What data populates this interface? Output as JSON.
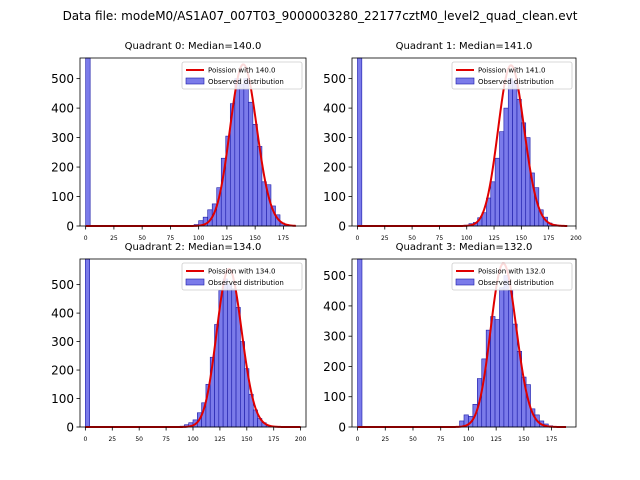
{
  "suptitle": "Data file: modeM0/AS1A07_007T03_9000003280_22177cztM0_level2_quad_clean.evt",
  "colors": {
    "hist_fill": "#7b7bea",
    "hist_edge": "#1a1aa8",
    "curve": "#e00000"
  },
  "chart_data": [
    {
      "type": "bar",
      "title": "Quadrant 0: Median=140.0",
      "xlim": [
        -5,
        195
      ],
      "ylim": [
        0,
        570
      ],
      "xticks": [
        0,
        25,
        50,
        75,
        100,
        125,
        150,
        175
      ],
      "yticks": [
        0,
        100,
        200,
        300,
        400,
        500
      ],
      "legend": {
        "position": "top-right",
        "curve_label": "Poission with 140.0",
        "hist_label": "Observed distribution"
      },
      "poisson_mean": 140.0,
      "poisson_peak": 548,
      "poisson_x": [
        0,
        186
      ],
      "bin_width": 4,
      "bins": [
        [
          0,
          570
        ],
        [
          96,
          5
        ],
        [
          100,
          18
        ],
        [
          104,
          30
        ],
        [
          108,
          55
        ],
        [
          112,
          75
        ],
        [
          116,
          130
        ],
        [
          120,
          230
        ],
        [
          124,
          305
        ],
        [
          128,
          415
        ],
        [
          132,
          500
        ],
        [
          136,
          480
        ],
        [
          140,
          500
        ],
        [
          144,
          420
        ],
        [
          148,
          345
        ],
        [
          152,
          270
        ],
        [
          156,
          150
        ],
        [
          160,
          140
        ],
        [
          164,
          68
        ],
        [
          168,
          38
        ],
        [
          172,
          10
        ],
        [
          176,
          5
        ],
        [
          180,
          2
        ]
      ]
    },
    {
      "type": "bar",
      "title": "Quadrant 1: Median=141.0",
      "xlim": [
        -5,
        200
      ],
      "ylim": [
        0,
        570
      ],
      "xticks": [
        0,
        25,
        50,
        75,
        100,
        125,
        150,
        175,
        200
      ],
      "yticks": [
        0,
        100,
        200,
        300,
        400,
        500
      ],
      "legend": {
        "position": "top-right",
        "curve_label": "Poission with 141.0",
        "hist_label": "Observed distribution"
      },
      "poisson_mean": 141.0,
      "poisson_peak": 545,
      "poisson_x": [
        0,
        192
      ],
      "bin_width": 4,
      "bins": [
        [
          0,
          570
        ],
        [
          98,
          3
        ],
        [
          102,
          8
        ],
        [
          106,
          12
        ],
        [
          110,
          28
        ],
        [
          114,
          45
        ],
        [
          118,
          95
        ],
        [
          122,
          150
        ],
        [
          126,
          230
        ],
        [
          130,
          320
        ],
        [
          134,
          400
        ],
        [
          138,
          500
        ],
        [
          142,
          490
        ],
        [
          146,
          430
        ],
        [
          150,
          350
        ],
        [
          154,
          300
        ],
        [
          158,
          180
        ],
        [
          162,
          130
        ],
        [
          166,
          55
        ],
        [
          170,
          30
        ],
        [
          174,
          10
        ],
        [
          178,
          5
        ]
      ]
    },
    {
      "type": "bar",
      "title": "Quadrant 2: Median=134.0",
      "xlim": [
        -5,
        205
      ],
      "ylim": [
        0,
        590
      ],
      "xticks": [
        0,
        25,
        50,
        75,
        100,
        125,
        150,
        175,
        200
      ],
      "yticks": [
        0,
        100,
        200,
        300,
        400,
        500
      ],
      "legend": {
        "position": "top-right",
        "curve_label": "Poission with 134.0",
        "hist_label": "Observed distribution"
      },
      "poisson_mean": 134.0,
      "poisson_peak": 555,
      "poisson_x": [
        0,
        200
      ],
      "bin_width": 4,
      "bins": [
        [
          0,
          590
        ],
        [
          88,
          3
        ],
        [
          92,
          8
        ],
        [
          96,
          15
        ],
        [
          100,
          25
        ],
        [
          104,
          50
        ],
        [
          108,
          85
        ],
        [
          112,
          150
        ],
        [
          116,
          245
        ],
        [
          120,
          360
        ],
        [
          124,
          480
        ],
        [
          128,
          520
        ],
        [
          132,
          500
        ],
        [
          136,
          485
        ],
        [
          140,
          420
        ],
        [
          144,
          300
        ],
        [
          148,
          205
        ],
        [
          152,
          115
        ],
        [
          156,
          60
        ],
        [
          160,
          30
        ],
        [
          164,
          15
        ],
        [
          168,
          5
        ],
        [
          172,
          2
        ]
      ]
    },
    {
      "type": "bar",
      "title": "Quadrant 3: Median=132.0",
      "xlim": [
        -5,
        197
      ],
      "ylim": [
        0,
        555
      ],
      "xticks": [
        0,
        25,
        50,
        75,
        100,
        125,
        150,
        175
      ],
      "yticks": [
        0,
        100,
        200,
        300,
        400,
        500
      ],
      "legend": {
        "position": "top-right",
        "curve_label": "Poission with 132.0",
        "hist_label": "Observed distribution"
      },
      "poisson_mean": 132.0,
      "poisson_peak": 540,
      "poisson_x": [
        0,
        188
      ],
      "bin_width": 4,
      "bins": [
        [
          0,
          555
        ],
        [
          92,
          20
        ],
        [
          96,
          40
        ],
        [
          100,
          35
        ],
        [
          104,
          75
        ],
        [
          108,
          160
        ],
        [
          112,
          225
        ],
        [
          116,
          320
        ],
        [
          120,
          365
        ],
        [
          124,
          355
        ],
        [
          128,
          460
        ],
        [
          132,
          500
        ],
        [
          136,
          450
        ],
        [
          140,
          340
        ],
        [
          144,
          250
        ],
        [
          148,
          165
        ],
        [
          152,
          140
        ],
        [
          156,
          60
        ],
        [
          160,
          40
        ],
        [
          164,
          20
        ],
        [
          168,
          10
        ],
        [
          172,
          4
        ]
      ]
    }
  ]
}
